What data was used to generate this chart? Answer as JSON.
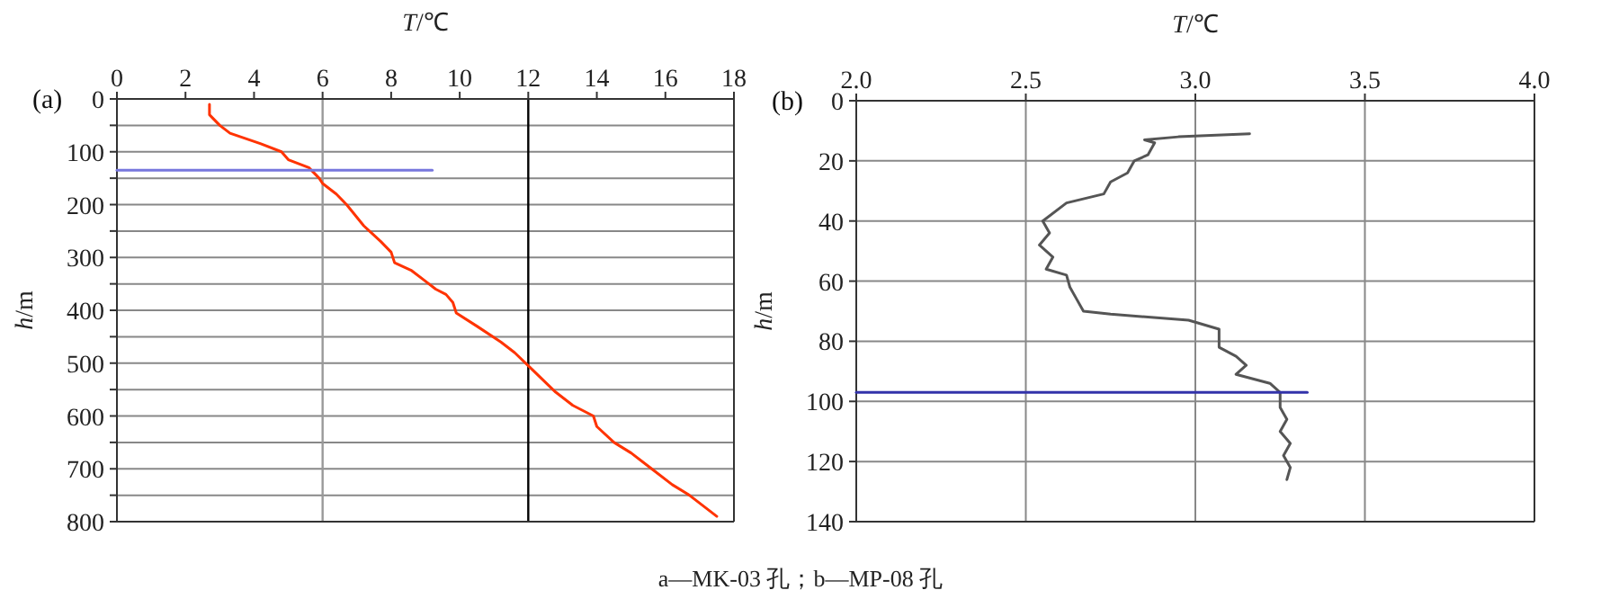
{
  "chart_data": [
    {
      "type": "line",
      "title": "(a)",
      "xlabel": "T/℃",
      "ylabel": "h/m",
      "xlim": [
        0,
        18
      ],
      "xticks": [
        0,
        2,
        4,
        6,
        8,
        10,
        12,
        14,
        16,
        18
      ],
      "ylim": [
        800,
        0
      ],
      "yticks": [
        0,
        {
          "value": 50,
          "label": null
        },
        100,
        {
          "value": 150,
          "label": null
        },
        200,
        {
          "value": 250,
          "label": null
        },
        300,
        {
          "value": 350,
          "label": null
        },
        400,
        {
          "value": 450,
          "label": null
        },
        500,
        {
          "value": 550,
          "label": null
        },
        600,
        {
          "value": 650,
          "label": null
        },
        700,
        {
          "value": 750,
          "label": null
        },
        800
      ],
      "grid": "y",
      "ref_lines": [
        {
          "axis": "x",
          "value": 6,
          "color": "#999999"
        },
        {
          "axis": "x",
          "value": 12,
          "color": "#000000"
        }
      ],
      "series": [
        {
          "color": "#ff3300",
          "x": [
            2.7,
            2.7,
            3.0,
            3.3,
            4.2,
            4.8,
            5.0,
            5.6,
            5.9,
            6.0,
            6.4,
            6.7,
            7.2,
            7.7,
            8.0,
            8.1,
            8.6,
            9.0,
            9.3,
            9.6,
            9.8,
            9.9,
            10.5,
            11.2,
            11.6,
            12.0,
            12.4,
            12.8,
            13.3,
            13.9,
            14.0,
            14.5,
            15.0,
            15.6,
            16.2,
            16.7,
            17.5
          ],
          "values": [
            10,
            30,
            50,
            65,
            85,
            100,
            115,
            130,
            150,
            160,
            180,
            200,
            240,
            270,
            290,
            310,
            325,
            345,
            360,
            370,
            385,
            405,
            430,
            460,
            480,
            505,
            530,
            555,
            580,
            600,
            620,
            650,
            670,
            700,
            730,
            750,
            790
          ]
        },
        {
          "color": "#7777dd",
          "x": [
            0,
            9.2
          ],
          "values": [
            135,
            135
          ]
        }
      ],
      "annotations": [
        "a—MK-03 孔；b—MP-08 孔"
      ]
    },
    {
      "type": "line",
      "title": "(b)",
      "xlabel": "T/℃",
      "ylabel": "h/m",
      "xlim": [
        2,
        4
      ],
      "xticks": [
        {
          "value": 2,
          "label": "2.0"
        },
        2.5,
        {
          "value": 3,
          "label": "3.0"
        },
        3.5,
        {
          "value": 4,
          "label": "4.0"
        }
      ],
      "ylim": [
        140,
        0
      ],
      "yticks": [
        0,
        20,
        40,
        60,
        80,
        100,
        120,
        140
      ],
      "grid": true,
      "series": [
        {
          "color": "#555555",
          "x": [
            3.16,
            2.95,
            2.85,
            2.88,
            2.86,
            2.82,
            2.8,
            2.75,
            2.73,
            2.62,
            2.55,
            2.57,
            2.54,
            2.58,
            2.56,
            2.62,
            2.63,
            2.65,
            2.67,
            2.75,
            2.98,
            3.07,
            3.07,
            3.12,
            3.15,
            3.12,
            3.22,
            3.25,
            3.25,
            3.27,
            3.25,
            3.28,
            3.26,
            3.28,
            3.27
          ],
          "values": [
            11,
            12,
            13,
            14,
            18,
            20,
            24,
            27,
            31,
            34,
            40,
            44,
            48,
            52,
            56,
            58,
            62,
            66,
            70,
            71,
            73,
            76,
            82,
            85,
            88,
            91,
            94,
            97,
            102,
            106,
            110,
            114,
            118,
            122,
            126
          ]
        },
        {
          "color": "#3333aa",
          "x": [
            2,
            3.33
          ],
          "values": [
            97,
            97
          ]
        }
      ]
    }
  ]
}
